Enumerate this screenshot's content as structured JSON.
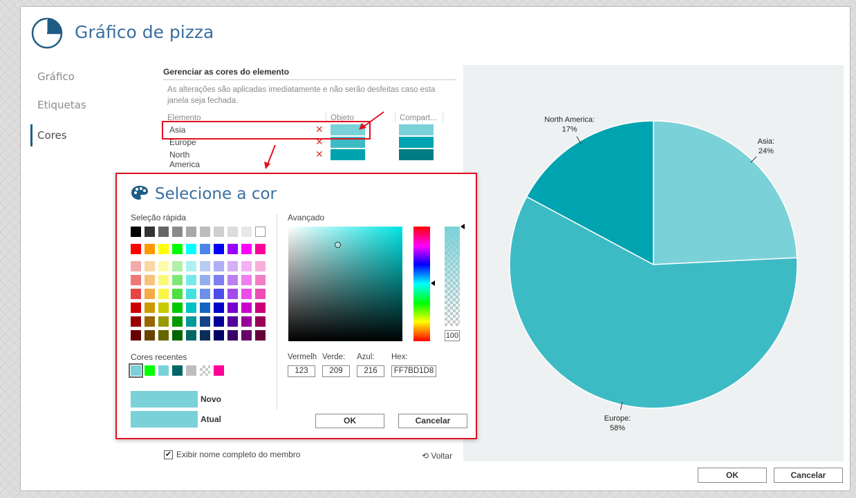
{
  "window": {
    "title": "Gráfico de pizza"
  },
  "nav": {
    "items": [
      "Gráfico",
      "Etiquetas",
      "Cores"
    ],
    "active": 2
  },
  "colors_section": {
    "title": "Gerenciar as cores do elemento",
    "note": "As alterações são aplicadas imediatamente e não serão desfeitas caso esta janela seja fechada.",
    "columns": {
      "element": "Elemento",
      "object": "Objeto",
      "shared": "Compart..."
    },
    "rows": [
      {
        "name": "Asia",
        "object_color": "#7BD1D8",
        "shared_color": "#7BD1D8"
      },
      {
        "name": "Europe",
        "object_color": "#3DBBC5",
        "shared_color": "#00A3B0"
      },
      {
        "name": "North America",
        "object_color": "#00A3B0",
        "shared_color": "#007C85"
      }
    ],
    "delete_glyph": "✕"
  },
  "footer": {
    "show_full_name_label": "Exibir nome completo do membro",
    "show_full_name_checked": true,
    "check_glyph": "✔",
    "back_label": "⟲ Voltar",
    "ok_label": "OK",
    "cancel_label": "Cancelar"
  },
  "chart_data": {
    "type": "pie",
    "slices": [
      {
        "label": "Asia:",
        "percent_label": "24%",
        "value": 24,
        "color": "#7BD1D8"
      },
      {
        "label": "Europe:",
        "percent_label": "58%",
        "value": 58,
        "color": "#3DBBC5"
      },
      {
        "label": "North America:",
        "percent_label": "17%",
        "value": 17,
        "color": "#00A3B0"
      }
    ]
  },
  "color_picker": {
    "title": "Selecione a cor",
    "quick_label": "Seleção rápida",
    "advanced_label": "Avançado",
    "recent_label": "Cores recentes",
    "grays": [
      "#000000",
      "#333333",
      "#666666",
      "#8a8a8a",
      "#a8a8a8",
      "#bdbdbd",
      "#cfcfcf",
      "#dcdcdc",
      "#e8e8e8",
      "#ffffff"
    ],
    "palette": [
      [
        "#ff0000",
        "#ff9900",
        "#ffff00",
        "#00ff00",
        "#00ffff",
        "#4a86e8",
        "#0000ff",
        "#9900ff",
        "#ff00ff",
        "#ff0099"
      ],
      [
        "#f4aaaa",
        "#fbd7a4",
        "#fdfcaa",
        "#b0f0a8",
        "#adf1f1",
        "#b9cbf3",
        "#b0b0f6",
        "#d5b0f5",
        "#f6b0f6",
        "#f7b0d9"
      ],
      [
        "#ee7777",
        "#f8c27a",
        "#fbf877",
        "#7fe875",
        "#79e8e8",
        "#93b0ee",
        "#7e7ef0",
        "#be7ef0",
        "#f07ef0",
        "#f27ec6"
      ],
      [
        "#e84444",
        "#f5aa44",
        "#f8f544",
        "#4ce042",
        "#44e0e0",
        "#6b91e8",
        "#4c4cea",
        "#a44cea",
        "#ea4cea",
        "#ec4cb4"
      ],
      [
        "#cc0000",
        "#cc9900",
        "#c9c900",
        "#00c900",
        "#00c2c2",
        "#1565c0",
        "#0000c9",
        "#7700cc",
        "#cc00cc",
        "#cc0077"
      ],
      [
        "#990000",
        "#996600",
        "#999900",
        "#009900",
        "#009999",
        "#114488",
        "#000099",
        "#550099",
        "#990099",
        "#990055"
      ],
      [
        "#660000",
        "#664400",
        "#666600",
        "#006600",
        "#006666",
        "#0b2d5a",
        "#000066",
        "#3a0066",
        "#660066",
        "#660038"
      ]
    ],
    "recent": [
      "#7BD1D8",
      "#00ff00",
      "#7BD1D8",
      "#006666",
      "#bdbdbd",
      "checker",
      "#ff0099"
    ],
    "new_label": "Novo",
    "current_label": "Atual",
    "new_color": "#7BD1D8",
    "current_color": "#7BD1D8",
    "alpha_value": "100",
    "fields": {
      "red_label": "Vermelho:",
      "red_value": "123",
      "green_label": "Verde:",
      "green_value": "209",
      "blue_label": "Azul:",
      "blue_value": "216",
      "hex_label": "Hex:",
      "hex_value": "FF7BD1D8"
    },
    "ok_label": "OK",
    "cancel_label": "Cancelar"
  }
}
